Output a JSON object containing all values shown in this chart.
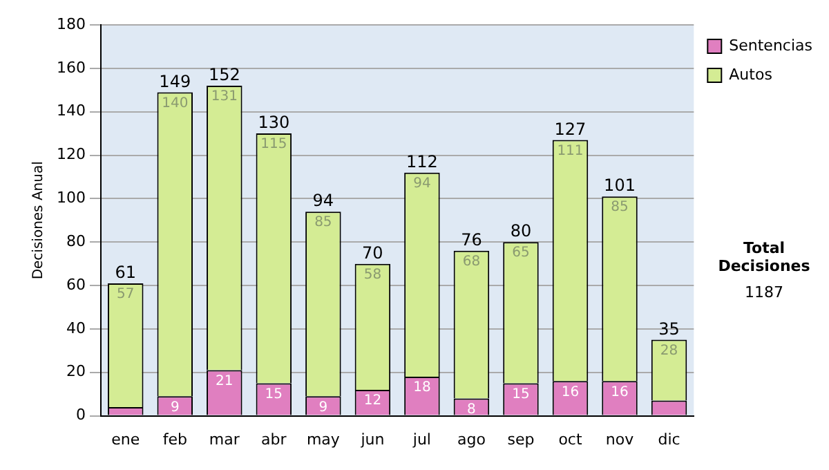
{
  "chart_data": {
    "type": "bar",
    "stacked": true,
    "ylabel": "Decisiones Anual",
    "categories": [
      "ene",
      "feb",
      "mar",
      "abr",
      "may",
      "jun",
      "jul",
      "ago",
      "sep",
      "oct",
      "nov",
      "dic"
    ],
    "series": [
      {
        "name": "Sentencias",
        "color": "#e07fc0",
        "values": [
          4,
          9,
          21,
          15,
          9,
          12,
          18,
          8,
          15,
          16,
          16,
          7
        ],
        "value_labels": [
          null,
          "9",
          "21",
          "15",
          "9",
          "12",
          "18",
          "8",
          "15",
          "16",
          "16",
          null
        ]
      },
      {
        "name": "Autos",
        "color": "#d4ec94",
        "values": [
          57,
          140,
          131,
          115,
          85,
          58,
          94,
          68,
          65,
          111,
          85,
          28
        ],
        "value_labels": [
          "57",
          "140",
          "131",
          "115",
          "85",
          "58",
          "94",
          "68",
          "65",
          "111",
          "85",
          "28"
        ]
      }
    ],
    "totals": [
      "61",
      "149",
      "152",
      "130",
      "94",
      "70",
      "112",
      "76",
      "80",
      "127",
      "101",
      "35"
    ],
    "ylim": [
      0,
      180
    ],
    "yticks": [
      0,
      20,
      40,
      60,
      80,
      100,
      120,
      140,
      160,
      180
    ],
    "grid": "y",
    "legend": "right",
    "annotations": [
      "Total Decisiones",
      "1187"
    ]
  }
}
